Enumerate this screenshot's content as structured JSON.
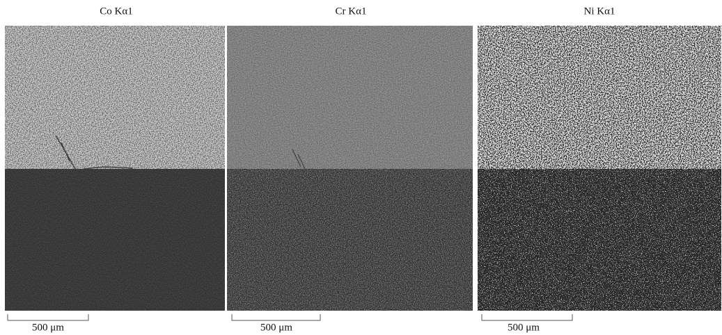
{
  "panels": [
    {
      "title": "Co Kα1",
      "scale_bar": "500 μm"
    },
    {
      "title": "Cr Kα1",
      "scale_bar": "500 μm"
    },
    {
      "title": "Ni Kα1",
      "scale_bar": "500 μm"
    }
  ]
}
